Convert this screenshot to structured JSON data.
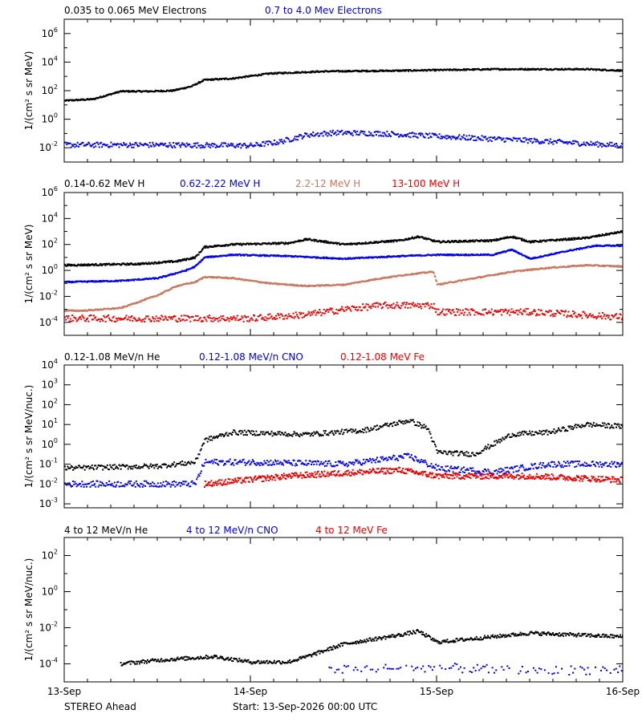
{
  "footer": {
    "left": "STEREO Ahead",
    "start": "Start: 13-Sep-2026 00:00 UTC"
  },
  "x_ticks": [
    "13-Sep",
    "14-Sep",
    "15-Sep",
    "16-Sep"
  ],
  "chart_data": [
    {
      "type": "scatter",
      "id": "electrons",
      "ylabel": "1/(cm² s sr MeV)",
      "yscale": "log",
      "ylim_exp": [
        -3,
        7
      ],
      "y_tick_exp": [
        -2,
        0,
        2,
        4,
        6
      ],
      "legend": [
        {
          "label": "0.035 to 0.065 MeV Electrons",
          "color": "#000000"
        },
        {
          "label": "0.7 to 4.0 Mev Electrons",
          "color": "#0000ee"
        }
      ],
      "series": [
        {
          "name": "0.035 to 0.065 MeV Electrons",
          "color": "#000000",
          "style": "dense",
          "noise": 0.05,
          "log10_profile": [
            [
              0,
              1.3
            ],
            [
              0.15,
              1.4
            ],
            [
              0.3,
              1.95
            ],
            [
              0.45,
              1.95
            ],
            [
              0.58,
              2.0
            ],
            [
              0.68,
              2.3
            ],
            [
              0.75,
              2.75
            ],
            [
              0.9,
              2.85
            ],
            [
              1.1,
              3.2
            ],
            [
              1.4,
              3.35
            ],
            [
              1.8,
              3.4
            ],
            [
              2.3,
              3.5
            ],
            [
              2.6,
              3.5
            ],
            [
              2.8,
              3.5
            ],
            [
              3.0,
              3.4
            ]
          ]
        },
        {
          "name": "0.7 to 4.0 Mev Electrons",
          "color": "#0000ee",
          "style": "scatter",
          "noise": 0.18,
          "log10_profile": [
            [
              0,
              -1.8
            ],
            [
              0.5,
              -1.8
            ],
            [
              1.0,
              -1.85
            ],
            [
              1.15,
              -1.6
            ],
            [
              1.3,
              -1.1
            ],
            [
              1.45,
              -0.95
            ],
            [
              1.7,
              -1.0
            ],
            [
              2.0,
              -1.2
            ],
            [
              2.5,
              -1.5
            ],
            [
              3.0,
              -1.85
            ]
          ]
        }
      ]
    },
    {
      "type": "scatter",
      "id": "protons",
      "ylabel": "1/(cm² s sr MeV)",
      "yscale": "log",
      "ylim_exp": [
        -5,
        6
      ],
      "y_tick_exp": [
        -4,
        -2,
        0,
        2,
        4,
        6
      ],
      "legend": [
        {
          "label": "0.14-0.62 MeV H",
          "color": "#000000"
        },
        {
          "label": "0.62-2.22 MeV H",
          "color": "#0000ee"
        },
        {
          "label": "2.2-12 MeV H",
          "color": "#c87860"
        },
        {
          "label": "13-100 MeV H",
          "color": "#ee0000"
        }
      ],
      "series": [
        {
          "name": "0.14-0.62 MeV H",
          "color": "#000000",
          "style": "dense",
          "noise": 0.07,
          "log10_profile": [
            [
              0,
              0.4
            ],
            [
              0.4,
              0.5
            ],
            [
              0.6,
              0.7
            ],
            [
              0.7,
              1.0
            ],
            [
              0.75,
              1.8
            ],
            [
              0.9,
              2.0
            ],
            [
              1.2,
              2.1
            ],
            [
              1.3,
              2.4
            ],
            [
              1.5,
              2.0
            ],
            [
              1.8,
              2.3
            ],
            [
              1.9,
              2.6
            ],
            [
              2.0,
              2.2
            ],
            [
              2.3,
              2.3
            ],
            [
              2.4,
              2.6
            ],
            [
              2.5,
              2.2
            ],
            [
              2.8,
              2.5
            ],
            [
              3.0,
              3.0
            ]
          ]
        },
        {
          "name": "0.62-2.22 MeV H",
          "color": "#0000ee",
          "style": "dense",
          "noise": 0.05,
          "log10_profile": [
            [
              0,
              -0.9
            ],
            [
              0.3,
              -0.8
            ],
            [
              0.5,
              -0.6
            ],
            [
              0.65,
              0.0
            ],
            [
              0.7,
              0.3
            ],
            [
              0.75,
              1.0
            ],
            [
              0.9,
              1.2
            ],
            [
              1.2,
              1.1
            ],
            [
              1.5,
              0.9
            ],
            [
              1.8,
              1.1
            ],
            [
              2.0,
              1.2
            ],
            [
              2.3,
              1.2
            ],
            [
              2.4,
              1.6
            ],
            [
              2.5,
              0.9
            ],
            [
              2.7,
              1.5
            ],
            [
              2.85,
              1.9
            ],
            [
              3.0,
              1.9
            ]
          ]
        },
        {
          "name": "2.2-12 MeV H",
          "color": "#c87860",
          "style": "dense",
          "noise": 0.05,
          "log10_profile": [
            [
              0,
              -3.1
            ],
            [
              0.1,
              -3.1
            ],
            [
              0.3,
              -2.9
            ],
            [
              0.4,
              -2.4
            ],
            [
              0.5,
              -1.9
            ],
            [
              0.6,
              -1.2
            ],
            [
              0.7,
              -0.9
            ],
            [
              0.75,
              -0.5
            ],
            [
              0.9,
              -0.6
            ],
            [
              1.1,
              -1.0
            ],
            [
              1.3,
              -1.2
            ],
            [
              1.5,
              -1.1
            ],
            [
              1.7,
              -0.6
            ],
            [
              1.85,
              -0.3
            ],
            [
              1.98,
              -0.1
            ],
            [
              2.0,
              -1.1
            ],
            [
              2.2,
              -0.6
            ],
            [
              2.4,
              -0.1
            ],
            [
              2.6,
              0.2
            ],
            [
              2.8,
              0.4
            ],
            [
              3.0,
              0.3
            ]
          ]
        },
        {
          "name": "13-100 MeV H",
          "color": "#ee0000",
          "style": "scatter",
          "noise": 0.25,
          "log10_profile": [
            [
              0,
              -3.7
            ],
            [
              0.5,
              -3.7
            ],
            [
              1.0,
              -3.7
            ],
            [
              1.3,
              -3.4
            ],
            [
              1.5,
              -3.0
            ],
            [
              1.7,
              -2.7
            ],
            [
              1.98,
              -2.7
            ],
            [
              2.0,
              -3.2
            ],
            [
              2.5,
              -3.2
            ],
            [
              3.0,
              -3.6
            ]
          ]
        }
      ]
    },
    {
      "type": "scatter",
      "id": "suprathermal",
      "ylabel": "1/(cm² s sr MeV/nuc.)",
      "yscale": "log",
      "ylim_exp": [
        -3.2,
        4
      ],
      "y_tick_exp": [
        -3,
        -2,
        -1,
        0,
        1,
        2,
        3,
        4
      ],
      "y_tick_style": "plain",
      "legend": [
        {
          "label": "0.12-1.08 MeV/n He",
          "color": "#000000"
        },
        {
          "label": "0.12-1.08 MeV/n CNO",
          "color": "#0000ee"
        },
        {
          "label": "0.12-1.08 MeV Fe",
          "color": "#ee0000"
        }
      ],
      "series": [
        {
          "name": "0.12-1.08 MeV/n He",
          "color": "#000000",
          "style": "scatter",
          "noise": 0.12,
          "log10_profile": [
            [
              0,
              -1.2
            ],
            [
              0.5,
              -1.1
            ],
            [
              0.7,
              -0.9
            ],
            [
              0.75,
              0.2
            ],
            [
              0.9,
              0.6
            ],
            [
              1.3,
              0.5
            ],
            [
              1.6,
              0.7
            ],
            [
              1.85,
              1.2
            ],
            [
              1.95,
              0.8
            ],
            [
              2.0,
              -0.4
            ],
            [
              2.2,
              -0.5
            ],
            [
              2.4,
              0.5
            ],
            [
              2.6,
              0.6
            ],
            [
              2.8,
              1.0
            ],
            [
              3.0,
              0.9
            ]
          ]
        },
        {
          "name": "0.12-1.08 MeV/n CNO",
          "color": "#0000ee",
          "style": "scatter",
          "noise": 0.15,
          "log10_profile": [
            [
              0,
              -2.0
            ],
            [
              0.7,
              -2.0
            ],
            [
              0.75,
              -0.9
            ],
            [
              1.0,
              -0.9
            ],
            [
              1.5,
              -1.0
            ],
            [
              1.85,
              -0.6
            ],
            [
              2.0,
              -1.2
            ],
            [
              2.3,
              -1.4
            ],
            [
              2.6,
              -1.0
            ],
            [
              3.0,
              -1.0
            ]
          ]
        },
        {
          "name": "0.12-1.08 MeV Fe",
          "color": "#ee0000",
          "style": "scatter",
          "noise": 0.15,
          "log10_profile": [
            [
              0.75,
              -2.0
            ],
            [
              1.2,
              -1.6
            ],
            [
              1.8,
              -1.3
            ],
            [
              2.0,
              -1.6
            ],
            [
              2.5,
              -1.6
            ],
            [
              3.0,
              -1.8
            ]
          ]
        }
      ]
    },
    {
      "type": "scatter",
      "id": "energetic-ions",
      "ylabel": "1/(cm² s sr MeV/nuc.)",
      "yscale": "log",
      "ylim_exp": [
        -5,
        3
      ],
      "y_tick_exp": [
        -4,
        -2,
        0,
        2
      ],
      "legend": [
        {
          "label": "4 to 12 MeV/n He",
          "color": "#000000"
        },
        {
          "label": "4 to 12 MeV/n CNO",
          "color": "#0000ee"
        },
        {
          "label": "4 to 12 MeV Fe",
          "color": "#ee0000"
        }
      ],
      "series": [
        {
          "name": "4 to 12 MeV/n He",
          "color": "#000000",
          "style": "scatter",
          "noise": 0.1,
          "log10_profile": [
            [
              0.3,
              -4.0
            ],
            [
              0.5,
              -3.8
            ],
            [
              0.8,
              -3.6
            ],
            [
              1.0,
              -3.9
            ],
            [
              1.2,
              -3.9
            ],
            [
              1.3,
              -3.6
            ],
            [
              1.5,
              -2.9
            ],
            [
              1.8,
              -2.4
            ],
            [
              1.9,
              -2.2
            ],
            [
              2.0,
              -2.8
            ],
            [
              2.2,
              -2.6
            ],
            [
              2.5,
              -2.3
            ],
            [
              3.0,
              -2.5
            ]
          ]
        },
        {
          "name": "4 to 12 MeV/n CNO",
          "color": "#0000ee",
          "style": "sparse",
          "noise": 0.25,
          "log10_profile": [
            [
              1.4,
              -4.3
            ],
            [
              2.0,
              -4.2
            ],
            [
              2.5,
              -4.4
            ],
            [
              3.0,
              -4.3
            ]
          ]
        }
      ]
    }
  ]
}
